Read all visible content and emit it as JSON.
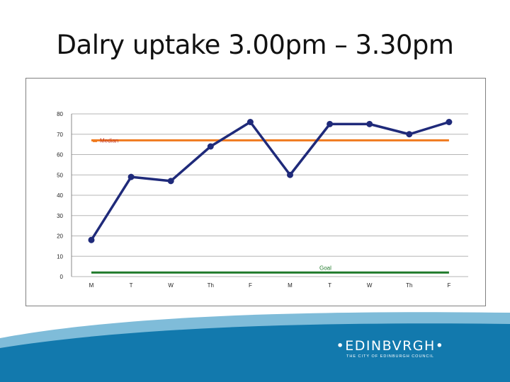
{
  "slide": {
    "title": "Dalry uptake 3.00pm – 3.30pm"
  },
  "chart_data": {
    "type": "line",
    "categories": [
      "M",
      "T",
      "W",
      "Th",
      "F",
      "M",
      "T",
      "W",
      "Th",
      "F"
    ],
    "series": [
      {
        "name": "",
        "values": [
          18,
          49,
          47,
          64,
          76,
          50,
          75,
          75,
          70,
          76
        ],
        "color": "#1f2a7a"
      }
    ],
    "reference_lines": [
      {
        "name": "Median",
        "value": 67,
        "color": "#f07a1e"
      },
      {
        "name": "Goal",
        "value": 2,
        "color": "#1f7a2a"
      }
    ],
    "ylim": [
      0,
      80
    ],
    "yticks": [
      0,
      10,
      20,
      30,
      40,
      50,
      60,
      70,
      80
    ],
    "grid": true,
    "xlabel": "",
    "ylabel": ""
  },
  "logo": {
    "main": "•EDINBVRGH•",
    "sub": "THE CITY OF EDINBURGH COUNCIL"
  },
  "colors": {
    "wave_light": "#7fbcd9",
    "wave_dark": "#1279ad"
  }
}
